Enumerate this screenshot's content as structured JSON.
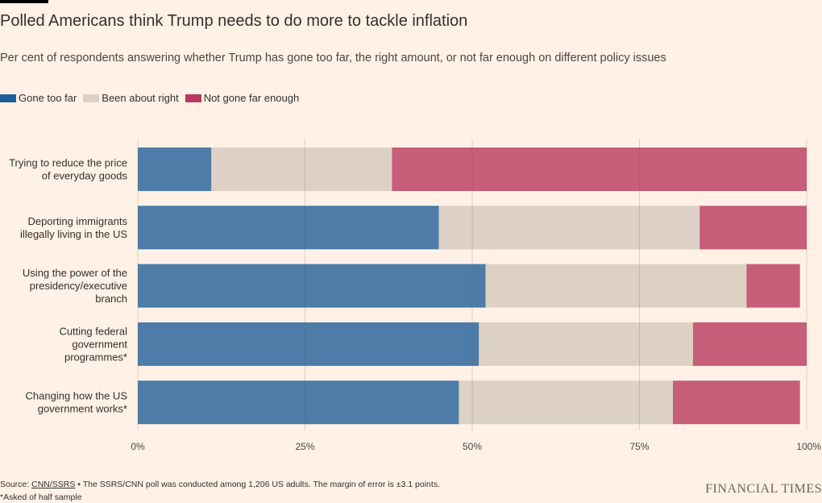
{
  "title": "Polled Americans think Trump needs to do more to tackle inflation",
  "subtitle": "Per cent of respondents answering whether Trump has gone too far, the right amount, or not far enough on different policy issues",
  "legend": [
    {
      "label": "Gone too far",
      "color": "#1F5F97"
    },
    {
      "label": "Been about right",
      "color": "#DDD1C5"
    },
    {
      "label": "Not gone far enough",
      "color": "#B8395E"
    }
  ],
  "chart_data": {
    "type": "bar",
    "orientation": "horizontal",
    "stacked": true,
    "categories": [
      [
        "Trying to reduce the price",
        "of everyday goods"
      ],
      [
        "Deporting immigrants",
        "illegally living in the US"
      ],
      [
        "Using the power of the",
        "presidency/executive",
        "branch"
      ],
      [
        "Cutting federal",
        "government",
        "programmes*"
      ],
      [
        "Changing how the US",
        "government works*"
      ]
    ],
    "series": [
      {
        "name": "Gone too far",
        "color": "#1F5F97",
        "values": [
          11,
          45,
          52,
          51,
          48
        ]
      },
      {
        "name": "Been about right",
        "color": "#DDD1C5",
        "values": [
          27,
          39,
          39,
          32,
          32
        ]
      },
      {
        "name": "Not gone far enough",
        "color": "#B8395E",
        "values": [
          62,
          16,
          8,
          17,
          19
        ]
      }
    ],
    "xlim": [
      0,
      100
    ],
    "xticks": [
      0,
      25,
      50,
      75,
      100
    ],
    "xtick_labels": [
      "0%",
      "25%",
      "50%",
      "75%",
      "100%"
    ],
    "grid": true,
    "legend_position": "top-left"
  },
  "footer": {
    "source_prefix": "Source: ",
    "source_link": "CNN/SSRS",
    "source_rest": " • The SSRS/CNN poll was conducted among 1,206 US adults. The margin of error is ±3.1 points.",
    "note": "*Asked of half sample",
    "brand": "FINANCIAL TIMES"
  }
}
